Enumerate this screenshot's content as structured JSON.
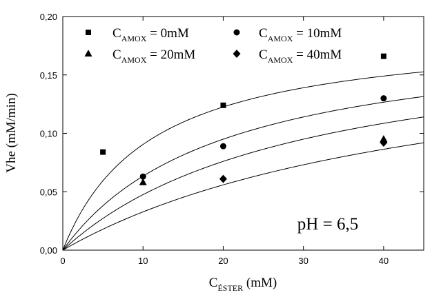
{
  "chart_data": {
    "type": "scatter",
    "ylabel": "Vhe (mM/min)",
    "xlabel": {
      "main": "C",
      "sub": "ÉSTER",
      "unit": " (mM)"
    },
    "xlim": [
      0,
      45
    ],
    "ylim": [
      0,
      0.2
    ],
    "x_ticks": [
      0,
      10,
      20,
      30,
      40
    ],
    "x_tick_labels": [
      "0",
      "10",
      "20",
      "30",
      "40"
    ],
    "y_ticks": [
      0,
      0.05,
      0.1,
      0.15,
      0.2
    ],
    "y_tick_labels": [
      "0,00",
      "0,05",
      "0,10",
      "0,15",
      "0,20"
    ],
    "annotation": "pH = 6,5",
    "grid": false,
    "legend_position": "top",
    "series": [
      {
        "name": {
          "main": "C",
          "sub": "AMOX",
          "rest": " = 0mM"
        },
        "marker": "square",
        "x": [
          5,
          20,
          40
        ],
        "y": [
          0.084,
          0.124,
          0.166
        ]
      },
      {
        "name": {
          "main": "C",
          "sub": "AMOX",
          "rest": " = 10mM"
        },
        "marker": "circle",
        "x": [
          10,
          20,
          40
        ],
        "y": [
          0.063,
          0.089,
          0.13
        ]
      },
      {
        "name": {
          "main": "C",
          "sub": "AMOX",
          "rest": " = 20mM"
        },
        "marker": "triangle",
        "x": [
          10,
          40
        ],
        "y": [
          0.058,
          0.095
        ]
      },
      {
        "name": {
          "main": "C",
          "sub": "AMOX",
          "rest": " = 40mM"
        },
        "marker": "diamond",
        "x": [
          20,
          40
        ],
        "y": [
          0.061,
          0.092
        ]
      }
    ],
    "fit_curves": [
      {
        "vmax": 0.19,
        "km": 11
      },
      {
        "vmax": 0.19,
        "km": 20
      },
      {
        "vmax": 0.19,
        "km": 30
      },
      {
        "vmax": 0.19,
        "km": 48
      }
    ]
  }
}
